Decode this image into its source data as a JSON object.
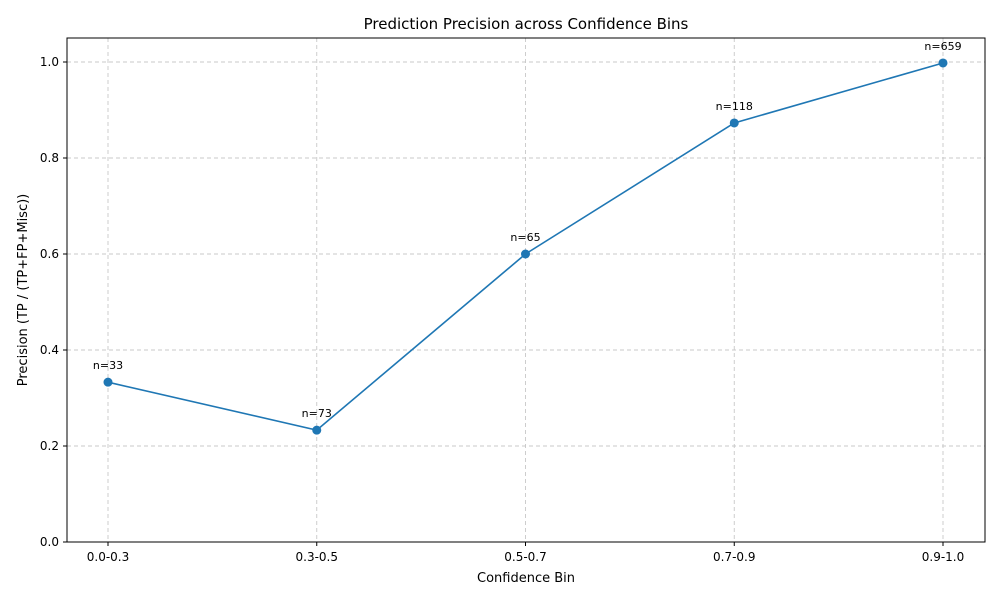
{
  "chart_data": {
    "type": "line",
    "title": "Prediction Precision across Confidence Bins",
    "xlabel": "Confidence Bin",
    "ylabel": "Precision (TP / (TP+FP+Misc))",
    "categories": [
      "0.0-0.3",
      "0.3-0.5",
      "0.5-0.7",
      "0.7-0.9",
      "0.9-1.0"
    ],
    "series": [
      {
        "values": [
          0.333,
          0.233,
          0.6,
          0.873,
          0.998
        ],
        "color": "#1f77b4"
      }
    ],
    "point_labels": [
      "n=33",
      "n=73",
      "n=65",
      "n=118",
      "n=659"
    ],
    "ylim": [
      0,
      1.05
    ],
    "yticks": [
      0.0,
      0.2,
      0.4,
      0.6,
      0.8,
      1.0
    ],
    "ytick_labels": [
      "0.0",
      "0.2",
      "0.4",
      "0.6",
      "0.8",
      "1.0"
    ],
    "grid": true,
    "marker": "circle"
  }
}
